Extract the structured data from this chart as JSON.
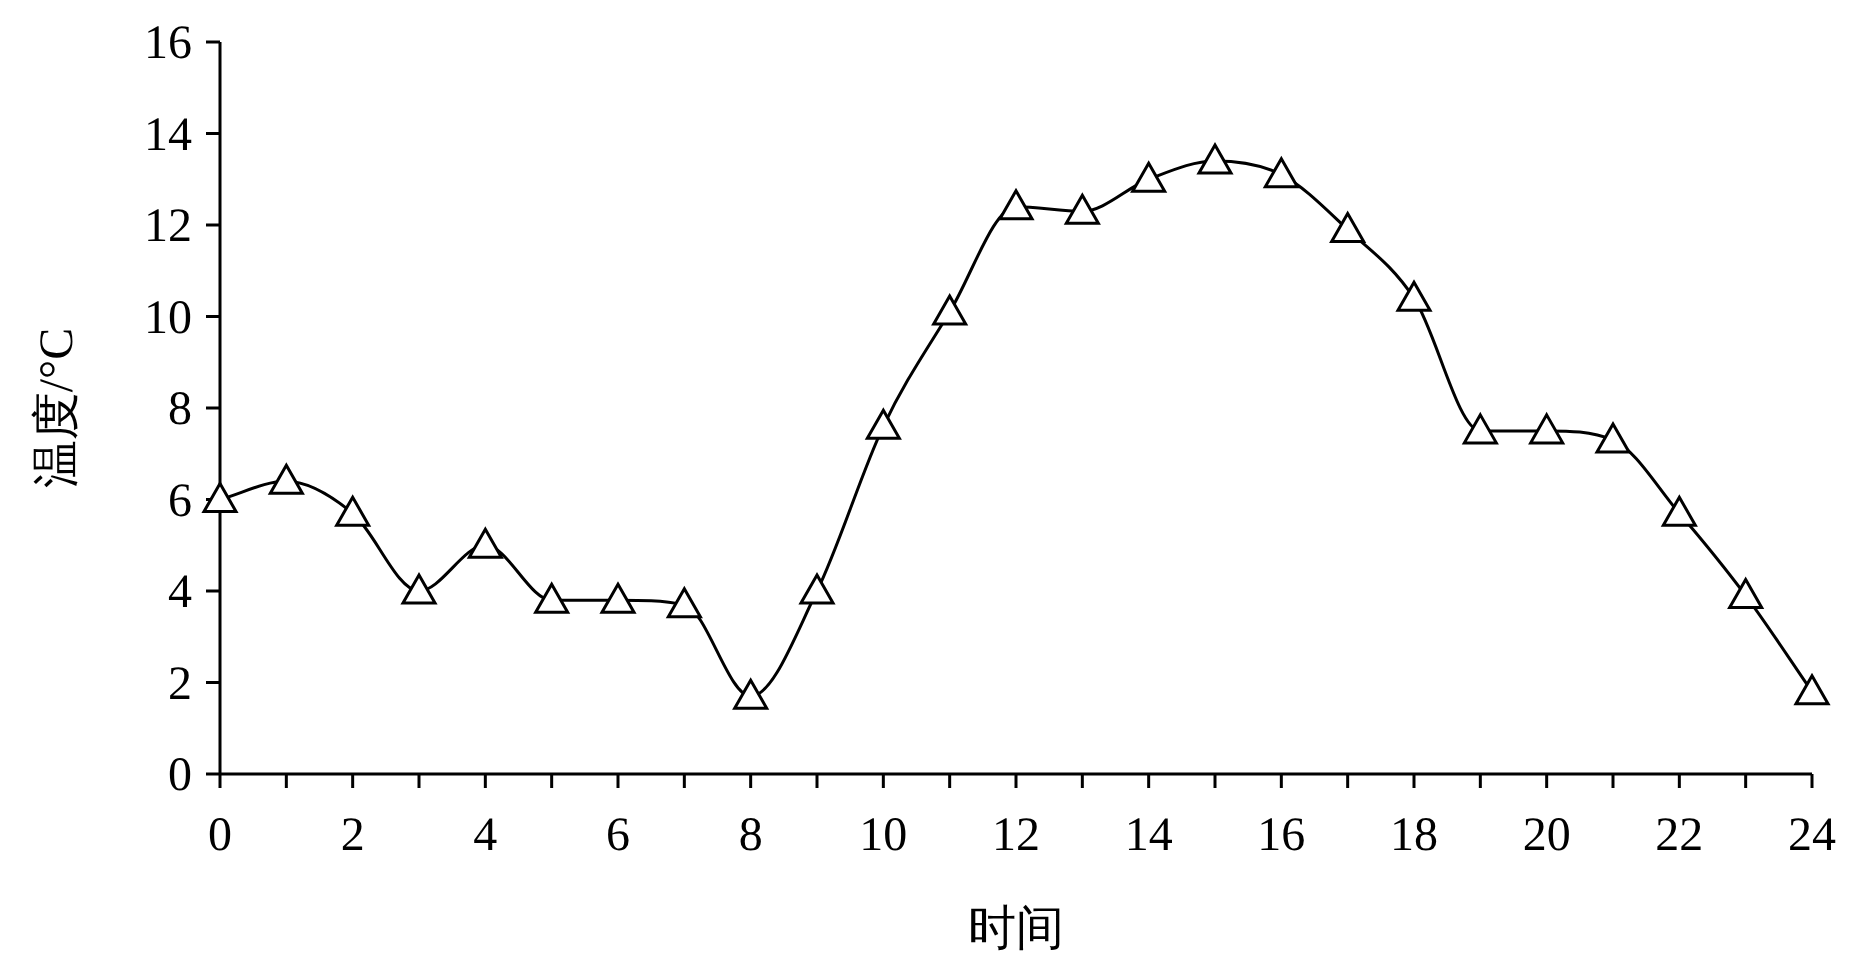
{
  "chart_data": {
    "type": "line",
    "xlabel": "时间",
    "ylabel": "温度/°C",
    "x": [
      0,
      1,
      2,
      3,
      4,
      5,
      6,
      7,
      8,
      9,
      10,
      11,
      12,
      13,
      14,
      15,
      16,
      17,
      18,
      19,
      20,
      21,
      22,
      23,
      24
    ],
    "series": [
      {
        "color": "#000000",
        "values": [
          6.0,
          6.4,
          5.7,
          4.0,
          5.0,
          3.8,
          3.8,
          3.7,
          1.7,
          4.0,
          7.6,
          10.1,
          12.4,
          12.3,
          13.0,
          13.4,
          13.1,
          11.9,
          10.4,
          7.5,
          7.5,
          7.3,
          5.7,
          3.9,
          1.8
        ]
      }
    ],
    "xlim": [
      0,
      24
    ],
    "xticks": [
      0,
      {
        "value": 1,
        "label": null
      },
      2,
      {
        "value": 3,
        "label": null
      },
      4,
      {
        "value": 5,
        "label": null
      },
      6,
      {
        "value": 7,
        "label": null
      },
      8,
      {
        "value": 9,
        "label": null
      },
      10,
      {
        "value": 11,
        "label": null
      },
      12,
      {
        "value": 13,
        "label": null
      },
      14,
      {
        "value": 15,
        "label": null
      },
      16,
      {
        "value": 17,
        "label": null
      },
      18,
      {
        "value": 19,
        "label": null
      },
      20,
      {
        "value": 21,
        "label": null
      },
      22,
      {
        "value": 23,
        "label": null
      },
      24
    ],
    "ylim": [
      0,
      16
    ],
    "yticks": [
      0,
      2,
      4,
      6,
      8,
      10,
      12,
      14,
      16
    ],
    "marker": "triangle",
    "line_style": "solid"
  }
}
